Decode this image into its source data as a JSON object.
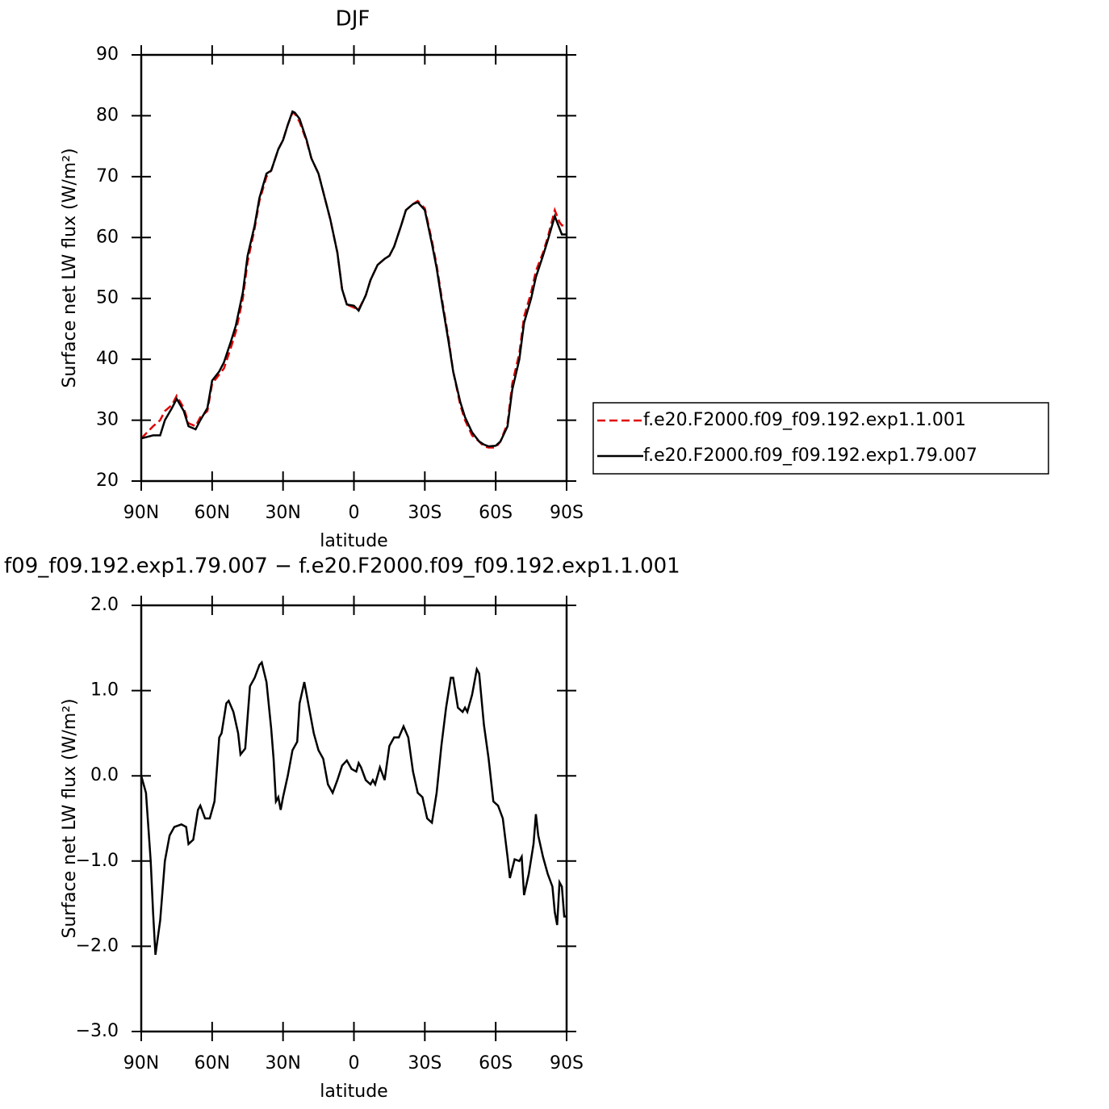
{
  "chart_data": [
    {
      "type": "line",
      "title": "DJF",
      "x_label": "latitude",
      "y_label": "Surface net LW flux (W/m²)",
      "xlim": [
        90,
        -90
      ],
      "xticks": [
        {
          "value": 90,
          "label": "90N"
        },
        {
          "value": 60,
          "label": "60N"
        },
        {
          "value": 30,
          "label": "30N"
        },
        0,
        {
          "value": -30,
          "label": "30S"
        },
        {
          "value": -60,
          "label": "60S"
        },
        {
          "value": -90,
          "label": "90S"
        }
      ],
      "ylim": [
        20,
        90
      ],
      "yticks": [
        20,
        30,
        40,
        50,
        60,
        70,
        80,
        90
      ],
      "legend_position": "right",
      "x": [
        90,
        85,
        82,
        80,
        77,
        75,
        72,
        70,
        67,
        65,
        62,
        60,
        57,
        55,
        52,
        50,
        47,
        45,
        42,
        40,
        37,
        35,
        32,
        30,
        28,
        26,
        25,
        23,
        20,
        18,
        15,
        12,
        10,
        7,
        5,
        3,
        0,
        -2,
        -5,
        -7,
        -10,
        -13,
        -15,
        -17,
        -20,
        -22,
        -25,
        -27,
        -30,
        -33,
        -35,
        -37,
        -40,
        -42,
        -45,
        -47,
        -50,
        -53,
        -55,
        -57,
        -60,
        -62,
        -65,
        -67,
        -70,
        -72,
        -75,
        -77,
        -80,
        -82,
        -85,
        -87,
        -88,
        -90
      ],
      "series": [
        {
          "name": "f.e20.F2000.f09_f09.192.exp1.1.001",
          "color": "#e00000",
          "line_style": "dashed",
          "values": [
            27,
            29,
            30,
            31.5,
            32.5,
            34,
            32,
            29.5,
            29,
            30.5,
            31.5,
            36,
            37.5,
            38.5,
            42,
            44.5,
            50,
            56,
            61.5,
            66,
            70,
            71,
            74.5,
            76,
            78.5,
            80.5,
            80.3,
            79,
            75.8,
            73,
            70.5,
            66,
            63,
            57.5,
            51.5,
            49,
            48.5,
            48.2,
            50.5,
            53,
            55.5,
            56.5,
            57,
            58.5,
            62,
            64.5,
            65.5,
            66,
            64.8,
            59.5,
            55.5,
            50.5,
            43.5,
            38,
            32.5,
            30,
            27.5,
            26.5,
            25.7,
            25.5,
            25.5,
            26.5,
            29.5,
            36,
            41,
            47,
            51,
            54.5,
            57.5,
            60,
            64.5,
            62.5,
            62,
            62
          ]
        },
        {
          "name": "f.e20.F2000.f09_f09.192.exp1.79.007",
          "color": "#000000",
          "line_style": "solid",
          "values": [
            27,
            27.5,
            27.5,
            30,
            32,
            33.5,
            31.5,
            29,
            28.5,
            30,
            32,
            36.5,
            38,
            39.5,
            43,
            45.5,
            51,
            57,
            62,
            66.5,
            70.5,
            71,
            74.5,
            76,
            78.5,
            80.7,
            80.5,
            79.5,
            76,
            73,
            70.5,
            66,
            63,
            57.5,
            51.5,
            49,
            48.8,
            48,
            50.5,
            53,
            55.5,
            56.5,
            57,
            58.5,
            62,
            64.5,
            65.5,
            65.8,
            64.5,
            59,
            55,
            50,
            43,
            38,
            33,
            30.5,
            28,
            26.5,
            26,
            25.7,
            25.8,
            26.5,
            29,
            35,
            40,
            46,
            50,
            53.5,
            57,
            59.5,
            63.5,
            61.5,
            60.5,
            60.5
          ]
        }
      ]
    },
    {
      "type": "line",
      "title": "f09_f09.192.exp1.79.007 − f.e20.F2000.f09_f09.192.exp1.1.001",
      "x_label": "latitude",
      "y_label": "Surface net LW flux (W/m²)",
      "xlim": [
        90,
        -90
      ],
      "xticks": [
        {
          "value": 90,
          "label": "90N"
        },
        {
          "value": 60,
          "label": "60N"
        },
        {
          "value": 30,
          "label": "30N"
        },
        0,
        {
          "value": -30,
          "label": "30S"
        },
        {
          "value": -60,
          "label": "60S"
        },
        {
          "value": -90,
          "label": "90S"
        }
      ],
      "ylim": [
        -3,
        2
      ],
      "yticks": [
        {
          "value": -3,
          "label": "−3.0"
        },
        {
          "value": -2,
          "label": "−2.0"
        },
        {
          "value": -1,
          "label": "−1.0"
        },
        {
          "value": 0,
          "label": "0.0"
        },
        {
          "value": 1,
          "label": "1.0"
        },
        {
          "value": 2,
          "label": "2.0"
        }
      ],
      "x": [
        90,
        88,
        86,
        85,
        84,
        82,
        80,
        78,
        76,
        73,
        71,
        70,
        68,
        66,
        65,
        63,
        61,
        59,
        57,
        56,
        54,
        53,
        51,
        49,
        48,
        46,
        44,
        42,
        40,
        39,
        37,
        35,
        34,
        33,
        32,
        31,
        30,
        28,
        26,
        24,
        23,
        21,
        19,
        17,
        15,
        13,
        11,
        9,
        7,
        5,
        3,
        1,
        -1,
        -2,
        -3,
        -5,
        -7,
        -8,
        -9,
        -11,
        -13,
        -15,
        -17,
        -19,
        -21,
        -23,
        -25,
        -27,
        -29,
        -31,
        -33,
        -35,
        -37,
        -39,
        -41,
        -42,
        -44,
        -46,
        -47,
        -48,
        -50,
        -52,
        -53,
        -55,
        -57,
        -59,
        -61,
        -63,
        -65,
        -66,
        -68,
        -70,
        -71,
        -72,
        -74,
        -76,
        -77,
        -78,
        -80,
        -82,
        -84,
        -85,
        -86,
        -87,
        -88,
        -89,
        -90
      ],
      "series": [
        {
          "name": "difference",
          "color": "#000000",
          "line_style": "solid",
          "values": [
            0.0,
            -0.2,
            -1.0,
            -1.6,
            -2.1,
            -1.7,
            -1.0,
            -0.7,
            -0.6,
            -0.57,
            -0.6,
            -0.8,
            -0.75,
            -0.4,
            -0.35,
            -0.5,
            -0.5,
            -0.3,
            0.45,
            0.5,
            0.85,
            0.88,
            0.75,
            0.5,
            0.25,
            0.32,
            1.05,
            1.15,
            1.3,
            1.33,
            1.1,
            0.55,
            0.2,
            -0.3,
            -0.25,
            -0.4,
            -0.25,
            0.0,
            0.3,
            0.4,
            0.85,
            1.1,
            0.8,
            0.5,
            0.3,
            0.2,
            -0.1,
            -0.2,
            -0.05,
            0.12,
            0.18,
            0.08,
            0.05,
            0.15,
            0.1,
            -0.05,
            -0.1,
            -0.05,
            -0.1,
            0.1,
            -0.05,
            0.35,
            0.45,
            0.45,
            0.58,
            0.45,
            0.05,
            -0.2,
            -0.25,
            -0.5,
            -0.55,
            -0.2,
            0.35,
            0.8,
            1.15,
            1.15,
            0.8,
            0.75,
            0.8,
            0.75,
            0.95,
            1.25,
            1.2,
            0.6,
            0.2,
            -0.3,
            -0.35,
            -0.5,
            -0.95,
            -1.2,
            -0.98,
            -1.0,
            -0.95,
            -1.4,
            -1.15,
            -0.8,
            -0.45,
            -0.7,
            -0.95,
            -1.15,
            -1.3,
            -1.6,
            -1.75,
            -1.25,
            -1.3,
            -1.65,
            -1.65
          ]
        }
      ]
    }
  ]
}
